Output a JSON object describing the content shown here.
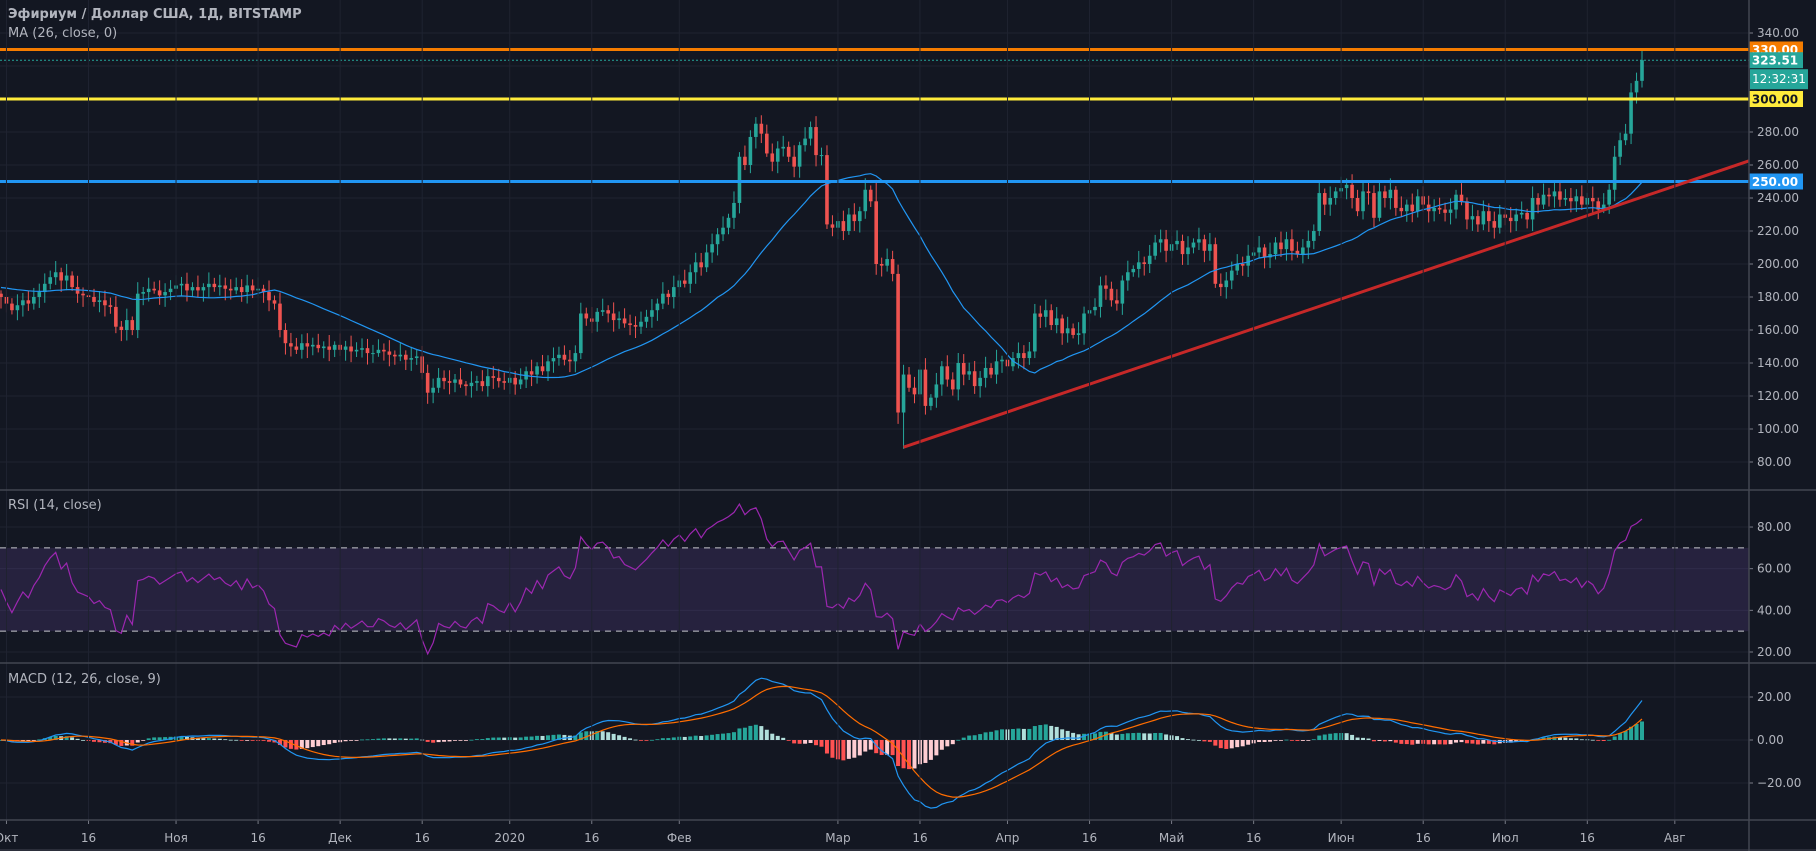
{
  "header": {
    "title": "Эфириум / Доллар США, 1Д, BITSTAMP",
    "ma_label": "MA (26, close, 0)",
    "rsi_label": "RSI (14, close)",
    "macd_label": "MACD (12, 26, close, 9)"
  },
  "colors": {
    "background": "#131722",
    "grid": "#1f2330",
    "up": "#26a69a",
    "down": "#ef5350",
    "ma": "#2196f3",
    "rsi": "#9c27b0",
    "rsi_band": "#7e57c2",
    "macd": "#2196f3",
    "signal": "#ff6d00",
    "trendline": "#c62828",
    "axis_text": "#b2b5be"
  },
  "chart_data": {
    "type": "candlestick",
    "title": "Эфириум / Доллар США, 1Д, BITSTAMP",
    "x_start": "2019-09-30",
    "interval": "1D",
    "ylim": [
      70,
      345
    ],
    "price_ticks": [
      340,
      320,
      300,
      280,
      260,
      240,
      220,
      200,
      180,
      160,
      140,
      120,
      100,
      80
    ],
    "price_tick_labels": [
      "340.00",
      "320.00",
      "300.00",
      "280.00",
      "260.00",
      "240.00",
      "220.00",
      "200.00",
      "180.00",
      "160.00",
      "140.00",
      "120.00",
      "100.00",
      "80.00"
    ],
    "time_ticks": [
      {
        "day": 1,
        "label": "Окт"
      },
      {
        "day": 16,
        "label": "16"
      },
      {
        "day": 32,
        "label": "Ноя"
      },
      {
        "day": 47,
        "label": "16"
      },
      {
        "day": 62,
        "label": "Дек"
      },
      {
        "day": 77,
        "label": "16"
      },
      {
        "day": 93,
        "label": "2020"
      },
      {
        "day": 108,
        "label": "16"
      },
      {
        "day": 124,
        "label": "Фев"
      },
      {
        "day": 153,
        "label": "Мар"
      },
      {
        "day": 168,
        "label": "16"
      },
      {
        "day": 184,
        "label": "Апр"
      },
      {
        "day": 199,
        "label": "16"
      },
      {
        "day": 214,
        "label": "Май"
      },
      {
        "day": 229,
        "label": "16"
      },
      {
        "day": 245,
        "label": "Июн"
      },
      {
        "day": 260,
        "label": "16"
      },
      {
        "day": 275,
        "label": "Июл"
      },
      {
        "day": 290,
        "label": "16"
      },
      {
        "day": 306,
        "label": "Авг"
      }
    ],
    "closes": [
      180,
      176,
      172,
      175,
      178,
      176,
      180,
      183,
      188,
      192,
      195,
      190,
      193,
      186,
      182,
      181,
      180,
      177,
      178,
      175,
      174,
      162,
      160,
      166,
      160,
      182,
      183,
      185,
      184,
      181,
      183,
      185,
      187,
      188,
      184,
      186,
      184,
      186,
      188,
      186,
      187,
      185,
      184,
      186,
      183,
      187,
      184,
      185,
      183,
      178,
      176,
      160,
      152,
      150,
      148,
      152,
      150,
      151,
      149,
      150,
      148,
      151,
      148,
      150,
      147,
      148,
      149,
      146,
      146,
      148,
      147,
      145,
      144,
      145,
      142,
      143,
      144,
      134,
      122,
      125,
      131,
      129,
      128,
      130,
      127,
      126,
      128,
      129,
      126,
      132,
      131,
      129,
      128,
      131,
      127,
      130,
      135,
      133,
      138,
      135,
      141,
      143,
      145,
      142,
      141,
      146,
      170,
      167,
      165,
      171,
      172,
      170,
      166,
      167,
      164,
      163,
      162,
      165,
      168,
      172,
      176,
      182,
      180,
      186,
      190,
      188,
      195,
      201,
      198,
      207,
      212,
      218,
      222,
      228,
      237,
      265,
      260,
      277,
      285,
      279,
      267,
      262,
      270,
      271,
      265,
      259,
      272,
      276,
      283,
      266,
      266,
      224,
      222,
      226,
      220,
      230,
      226,
      232,
      245,
      238,
      200,
      199,
      203,
      194,
      110,
      133,
      125,
      121,
      136,
      114,
      119,
      127,
      138,
      130,
      124,
      140,
      133,
      135,
      126,
      131,
      137,
      133,
      141,
      142,
      138,
      143,
      146,
      143,
      147,
      170,
      168,
      172,
      163,
      167,
      158,
      161,
      157,
      158,
      170,
      172,
      174,
      187,
      185,
      178,
      176,
      190,
      195,
      197,
      201,
      200,
      205,
      213,
      215,
      208,
      212,
      214,
      206,
      210,
      213,
      215,
      208,
      212,
      188,
      186,
      190,
      196,
      200,
      199,
      205,
      207,
      210,
      204,
      206,
      213,
      209,
      215,
      208,
      206,
      210,
      214,
      220,
      243,
      236,
      240,
      244,
      246,
      248,
      240,
      232,
      244,
      243,
      228,
      244,
      240,
      245,
      234,
      232,
      236,
      232,
      241,
      236,
      232,
      234,
      233,
      231,
      233,
      242,
      238,
      227,
      229,
      224,
      232,
      226,
      222,
      230,
      228,
      226,
      230,
      231,
      227,
      240,
      236,
      242,
      241,
      244,
      239,
      240,
      238,
      241,
      236,
      240,
      238,
      233,
      236,
      245,
      265,
      275,
      279,
      304,
      311,
      323.51
    ],
    "extremes": [
      {
        "day": 165,
        "low": 88
      },
      {
        "day": 138,
        "high": 289
      },
      {
        "day": 300,
        "high": 330
      },
      {
        "day": 160,
        "high": 251
      }
    ],
    "moving_average": {
      "length": 26
    },
    "horizontal_levels": [
      {
        "price": 330,
        "label": "330.00",
        "color": "#f57c00",
        "text_color": "#ffffff"
      },
      {
        "price": 300,
        "label": "300.00",
        "color": "#ffeb3b",
        "text_color": "#131722"
      },
      {
        "price": 250,
        "label": "250.00",
        "color": "#2196f3",
        "text_color": "#ffffff"
      }
    ],
    "trendline": {
      "from": {
        "day": 165,
        "price": 89
      },
      "to": {
        "day": 320,
        "price": 263
      }
    },
    "last_price": {
      "price": 323.51,
      "label": "323.51",
      "countdown": "12:32:31",
      "color": "#26a69a"
    },
    "rsi": {
      "length": 14,
      "upper": 70,
      "lower": 30,
      "ylim": [
        15,
        95
      ],
      "ticks": [
        80,
        60,
        40,
        20
      ],
      "tick_labels": [
        "80.00",
        "60.00",
        "40.00",
        "20.00"
      ]
    },
    "macd": {
      "fast": 12,
      "slow": 26,
      "signal": 9,
      "ylim": [
        -37,
        37
      ],
      "ticks": [
        20,
        0,
        -20
      ],
      "tick_labels": [
        "20.00",
        "0.00",
        "−20.00"
      ]
    }
  }
}
